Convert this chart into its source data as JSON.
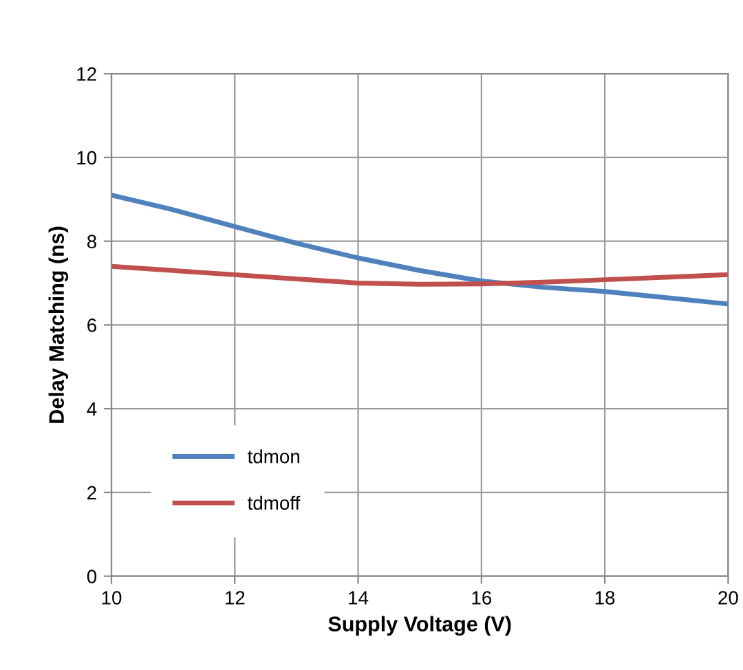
{
  "chart_data": {
    "type": "line",
    "xlabel": "Supply Voltage (V)",
    "ylabel": "Delay Matching (ns)",
    "xlim": [
      10,
      20
    ],
    "xticks": [
      10,
      12,
      14,
      16,
      18,
      20
    ],
    "ylim": [
      0,
      12
    ],
    "yticks": [
      0,
      2,
      4,
      6,
      8,
      10,
      12
    ],
    "grid": true,
    "legend": "bottom left",
    "marker": "none",
    "line_style": "solid",
    "series": [
      {
        "name": "tdmon",
        "color": "#4f81bd",
        "x": [
          10,
          11,
          12,
          13,
          14,
          15,
          16,
          17,
          18,
          19,
          20
        ],
        "values": [
          9.1,
          8.75,
          8.35,
          7.95,
          7.6,
          7.3,
          7.05,
          6.9,
          6.8,
          6.65,
          6.5
        ]
      },
      {
        "name": "tdmoff",
        "color": "#c0504d",
        "x": [
          10,
          11,
          12,
          13,
          14,
          15,
          16,
          17,
          18,
          19,
          20
        ],
        "values": [
          7.4,
          7.3,
          7.2,
          7.1,
          7.0,
          6.97,
          6.98,
          7.02,
          7.08,
          7.14,
          7.2
        ]
      }
    ]
  }
}
